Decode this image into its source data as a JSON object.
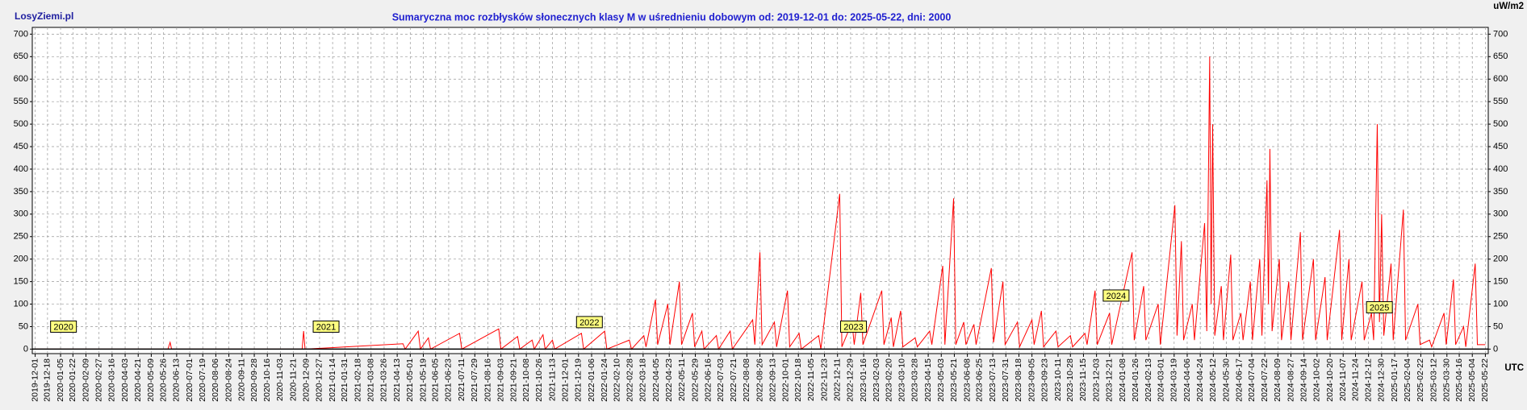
{
  "chart_data": {
    "type": "line",
    "site": "LosyZiemi.pl",
    "title": "Sumaryczna moc rozbłysków słonecznych klasy M w uśrednieniu dobowym od: 2019-12-01 do: 2025-05-22, dni: 2000",
    "y_unit": "uW/m2",
    "x_unit": "UTC",
    "xlim": [
      "2019-11-27",
      "2025-05-26"
    ],
    "xticks": [
      "2019-12-01",
      "2019-12-18",
      "2020-01-05",
      "2020-01-22",
      "2020-02-09",
      "2020-02-27",
      "2020-03-16",
      "2020-04-03",
      "2020-04-21",
      "2020-05-09",
      "2020-05-26",
      "2020-06-13",
      "2020-07-01",
      "2020-07-19",
      "2020-08-06",
      "2020-08-24",
      "2020-09-11",
      "2020-09-28",
      "2020-10-16",
      "2020-11-03",
      "2020-11-21",
      "2020-12-09",
      "2020-12-27",
      "2021-01-14",
      "2021-01-31",
      "2021-02-18",
      "2021-03-08",
      "2021-03-26",
      "2021-04-13",
      "2021-05-01",
      "2021-05-19",
      "2021-06-05",
      "2021-06-23",
      "2021-07-11",
      "2021-07-29",
      "2021-08-16",
      "2021-09-03",
      "2021-09-21",
      "2021-10-08",
      "2021-10-26",
      "2021-11-13",
      "2021-12-01",
      "2021-12-19",
      "2022-01-06",
      "2022-01-24",
      "2022-02-10",
      "2022-02-28",
      "2022-03-18",
      "2022-04-05",
      "2022-04-23",
      "2022-05-11",
      "2022-05-29",
      "2022-06-16",
      "2022-07-03",
      "2022-07-21",
      "2022-08-08",
      "2022-08-26",
      "2022-09-13",
      "2022-10-01",
      "2022-10-18",
      "2022-11-05",
      "2022-11-23",
      "2022-12-11",
      "2022-12-29",
      "2023-01-16",
      "2023-02-03",
      "2023-02-20",
      "2023-03-10",
      "2023-03-28",
      "2023-04-15",
      "2023-05-03",
      "2023-05-21",
      "2023-06-08",
      "2023-06-25",
      "2023-07-13",
      "2023-07-31",
      "2023-08-18",
      "2023-09-05",
      "2023-09-23",
      "2023-10-11",
      "2023-10-28",
      "2023-11-15",
      "2023-12-03",
      "2023-12-21",
      "2024-01-08",
      "2024-01-26",
      "2024-02-13",
      "2024-03-01",
      "2024-03-19",
      "2024-04-06",
      "2024-04-24",
      "2024-05-12",
      "2024-05-30",
      "2024-06-17",
      "2024-07-04",
      "2024-07-22",
      "2024-08-09",
      "2024-08-27",
      "2024-09-14",
      "2024-10-02",
      "2024-10-20",
      "2024-11-07",
      "2024-11-24",
      "2024-12-12",
      "2024-12-30",
      "2025-01-17",
      "2025-02-04",
      "2025-02-22",
      "2025-03-12",
      "2025-03-30",
      "2025-04-16",
      "2025-05-04",
      "2025-05-22"
    ],
    "ylim": [
      -10,
      715
    ],
    "yticks": [
      0,
      50,
      100,
      150,
      200,
      250,
      300,
      350,
      400,
      450,
      500,
      550,
      600,
      650,
      700
    ],
    "y2lim": [
      -10,
      715
    ],
    "y2ticks": [
      0,
      50,
      100,
      150,
      200,
      250,
      300,
      350,
      400,
      450,
      500,
      550,
      600,
      650,
      700
    ],
    "grid": true,
    "x": [
      "2019-12-01",
      "2020-06-01",
      "2020-06-04",
      "2020-06-06",
      "2020-12-03",
      "2020-12-05",
      "2020-12-07",
      "2021-04-21",
      "2021-04-24",
      "2021-05-12",
      "2021-05-15",
      "2021-05-26",
      "2021-05-29",
      "2021-07-08",
      "2021-07-11",
      "2021-08-31",
      "2021-09-03",
      "2021-09-26",
      "2021-09-29",
      "2021-10-16",
      "2021-10-19",
      "2021-10-31",
      "2021-11-03",
      "2021-11-13",
      "2021-11-16",
      "2021-12-23",
      "2021-12-26",
      "2022-01-24",
      "2022-01-27",
      "2022-02-27",
      "2022-03-02",
      "2022-03-19",
      "2022-03-22",
      "2022-04-04",
      "2022-04-07",
      "2022-04-21",
      "2022-04-24",
      "2022-05-07",
      "2022-05-10",
      "2022-05-25",
      "2022-05-28",
      "2022-06-07",
      "2022-06-10",
      "2022-06-27",
      "2022-06-30",
      "2022-07-16",
      "2022-07-19",
      "2022-08-16",
      "2022-08-19",
      "2022-08-26",
      "2022-08-29",
      "2022-09-15",
      "2022-09-18",
      "2022-10-03",
      "2022-10-06",
      "2022-10-19",
      "2022-10-22",
      "2022-11-15",
      "2022-11-18",
      "2022-12-14",
      "2022-12-17",
      "2022-12-31",
      "2023-01-03",
      "2023-01-12",
      "2023-01-15",
      "2023-02-10",
      "2023-02-13",
      "2023-02-23",
      "2023-02-26",
      "2023-03-08",
      "2023-03-11",
      "2023-03-28",
      "2023-03-31",
      "2023-04-17",
      "2023-04-20",
      "2023-05-05",
      "2023-05-08",
      "2023-05-20",
      "2023-05-23",
      "2023-06-03",
      "2023-06-06",
      "2023-06-17",
      "2023-06-20",
      "2023-07-11",
      "2023-07-14",
      "2023-07-27",
      "2023-07-30",
      "2023-08-16",
      "2023-08-19",
      "2023-09-05",
      "2023-09-08",
      "2023-09-18",
      "2023-09-21",
      "2023-10-08",
      "2023-10-11",
      "2023-10-28",
      "2023-10-31",
      "2023-11-17",
      "2023-11-20",
      "2023-12-01",
      "2023-12-04",
      "2023-12-21",
      "2023-12-24",
      "2024-01-21",
      "2024-01-24",
      "2024-02-06",
      "2024-02-09",
      "2024-02-26",
      "2024-02-29",
      "2024-03-20",
      "2024-03-23",
      "2024-03-29",
      "2024-04-01",
      "2024-04-13",
      "2024-04-16",
      "2024-04-30",
      "2024-05-03",
      "2024-05-07",
      "2024-05-09",
      "2024-05-11",
      "2024-05-14",
      "2024-05-23",
      "2024-05-26",
      "2024-06-05",
      "2024-06-08",
      "2024-06-19",
      "2024-06-22",
      "2024-07-02",
      "2024-07-05",
      "2024-07-15",
      "2024-07-18",
      "2024-07-25",
      "2024-07-27",
      "2024-07-29",
      "2024-08-01",
      "2024-08-11",
      "2024-08-14",
      "2024-08-24",
      "2024-08-27",
      "2024-09-09",
      "2024-09-12",
      "2024-09-27",
      "2024-09-30",
      "2024-10-13",
      "2024-10-16",
      "2024-11-02",
      "2024-11-05",
      "2024-11-15",
      "2024-11-18",
      "2024-12-03",
      "2024-12-06",
      "2024-12-16",
      "2024-12-19",
      "2024-12-24",
      "2024-12-27",
      "2024-12-30",
      "2025-01-02",
      "2025-01-12",
      "2025-01-15",
      "2025-01-29",
      "2025-02-01",
      "2025-02-18",
      "2025-02-21",
      "2025-03-06",
      "2025-03-09",
      "2025-03-26",
      "2025-03-29",
      "2025-04-08",
      "2025-04-11",
      "2025-04-22",
      "2025-04-25",
      "2025-05-08",
      "2025-05-11",
      "2025-05-22"
    ],
    "series": [
      {
        "color": "#ff0000",
        "values": [
          0,
          0,
          15,
          0,
          0,
          40,
          0,
          12,
          0,
          40,
          0,
          25,
          0,
          35,
          0,
          45,
          0,
          28,
          0,
          20,
          0,
          32,
          0,
          20,
          0,
          35,
          0,
          40,
          0,
          20,
          0,
          30,
          5,
          110,
          10,
          100,
          10,
          150,
          10,
          80,
          5,
          40,
          0,
          30,
          0,
          40,
          0,
          65,
          10,
          215,
          10,
          60,
          5,
          130,
          5,
          35,
          0,
          30,
          0,
          345,
          5,
          60,
          10,
          125,
          10,
          130,
          10,
          70,
          5,
          85,
          5,
          25,
          5,
          40,
          10,
          185,
          10,
          335,
          10,
          60,
          10,
          55,
          10,
          180,
          15,
          150,
          10,
          60,
          5,
          65,
          10,
          85,
          5,
          40,
          5,
          30,
          5,
          35,
          10,
          130,
          10,
          80,
          10,
          215,
          20,
          140,
          20,
          100,
          10,
          320,
          30,
          240,
          20,
          100,
          20,
          280,
          40,
          650,
          100,
          500,
          30,
          140,
          20,
          210,
          20,
          80,
          20,
          150,
          20,
          200,
          30,
          375,
          100,
          445,
          40,
          200,
          20,
          150,
          20,
          260,
          20,
          200,
          20,
          160,
          20,
          265,
          20,
          200,
          20,
          150,
          20,
          80,
          20,
          500,
          60,
          300,
          30,
          190,
          20,
          310,
          20,
          100,
          10,
          20,
          5,
          80,
          10,
          155,
          10,
          50,
          5,
          190,
          10,
          10
        ]
      }
    ],
    "annotations": [
      {
        "text": "2020",
        "x": "2020-01-09",
        "y": 50
      },
      {
        "text": "2021",
        "x": "2021-01-05",
        "y": 50
      },
      {
        "text": "2022",
        "x": "2022-01-03",
        "y": 60
      },
      {
        "text": "2023",
        "x": "2023-01-02",
        "y": 50
      },
      {
        "text": "2024",
        "x": "2023-12-30",
        "y": 119
      },
      {
        "text": "2025",
        "x": "2024-12-27",
        "y": 93
      }
    ]
  }
}
